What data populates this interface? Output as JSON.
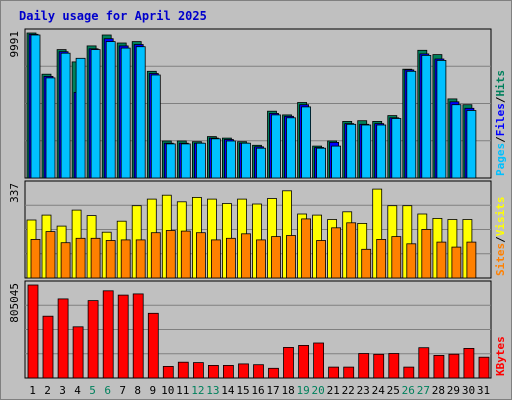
{
  "chart_data": {
    "type": "bar",
    "title": "Daily usage for April 2025",
    "categories": [
      "1",
      "2",
      "3",
      "4",
      "5",
      "6",
      "7",
      "8",
      "9",
      "10",
      "11",
      "12",
      "13",
      "14",
      "15",
      "16",
      "17",
      "18",
      "19",
      "20",
      "21",
      "22",
      "23",
      "24",
      "25",
      "26",
      "27",
      "28",
      "29",
      "30",
      "31"
    ],
    "weekend_categories": [
      "5",
      "6",
      "12",
      "13",
      "19",
      "20",
      "26",
      "27"
    ],
    "colors": {
      "title": "#0000cc",
      "background": "#c0c0c0",
      "grid": "#808080",
      "hits": "#00805c",
      "files": "#0000ff",
      "pages": "#00c0ff",
      "visits": "#ffff00",
      "sites": "#ff8000",
      "kbytes": "#ff0000",
      "weekday_label": "#000000",
      "weekend_label": "#00805c"
    },
    "panels": [
      {
        "name": "hits-files-pages",
        "ymax_label": "9991",
        "ymax": 9991,
        "legend": [
          {
            "text": "Pages",
            "color": "#00c0ff"
          },
          {
            "text": "/",
            "color": "#000000"
          },
          {
            "text": "Files",
            "color": "#0000ff"
          },
          {
            "text": "/",
            "color": "#000000"
          },
          {
            "text": "Hits",
            "color": "#00805c"
          }
        ],
        "series": [
          {
            "name": "Hits",
            "values": [
              9991,
              7150,
              8850,
              8000,
              9100,
              9850,
              9300,
              9400,
              7350,
              2550,
              2550,
              2500,
              2850,
              2750,
              2500,
              2250,
              4600,
              4350,
              5200,
              2200,
              2550,
              3900,
              3950,
              3900,
              4300,
              7500,
              8800,
              8500,
              5450,
              5050,
              0
            ]
          },
          {
            "name": "Files",
            "values": [
              9900,
              7000,
              8700,
              5900,
              8900,
              9600,
              9100,
              9200,
              7200,
              2400,
              2400,
              2400,
              2750,
              2650,
              2400,
              2150,
              4450,
              4250,
              5050,
              2100,
              2450,
              3750,
              3700,
              3750,
              4150,
              7450,
              8550,
              8200,
              5250,
              4800,
              0
            ]
          },
          {
            "name": "Pages",
            "values": [
              9850,
              6900,
              8600,
              8250,
              8850,
              9400,
              8950,
              9050,
              7100,
              2350,
              2350,
              2400,
              2700,
              2550,
              2400,
              2050,
              4350,
              4150,
              4900,
              2050,
              2200,
              3700,
              3650,
              3650,
              4100,
              7350,
              8450,
              8100,
              5050,
              4650,
              0
            ]
          }
        ]
      },
      {
        "name": "visits-sites",
        "ymax_label": "337",
        "ymax": 337,
        "legend": [
          {
            "text": "Sites",
            "color": "#ff8000"
          },
          {
            "text": "/",
            "color": "#000000"
          },
          {
            "text": "Visits",
            "color": "#ffff00"
          }
        ],
        "series": [
          {
            "name": "Visits",
            "values": [
              210,
              228,
              188,
              246,
              226,
              166,
              206,
              262,
              286,
              300,
              276,
              292,
              286,
              270,
              286,
              268,
              288,
              316,
              232,
              228,
              212,
              240,
              198,
              322,
              262,
              262,
              232,
              216,
              212,
              212,
              0
            ]
          },
          {
            "name": "Sites",
            "values": [
              140,
              168,
              128,
              144,
              144,
              136,
              138,
              138,
              164,
              172,
              170,
              164,
              138,
              144,
              160,
              138,
              150,
              154,
              214,
              136,
              182,
              200,
              104,
              140,
              150,
              124,
              176,
              130,
              112,
              130,
              0
            ]
          }
        ]
      },
      {
        "name": "kbytes",
        "ymax_label": "805045",
        "ymax": 805045,
        "legend": [
          {
            "text": "KBytes",
            "color": "#ff0000"
          }
        ],
        "series": [
          {
            "name": "KBytes",
            "values": [
              805045,
              535000,
              685000,
              443000,
              670000,
              755000,
              718000,
              728000,
              560000,
              100000,
              137000,
              133000,
              109000,
              109000,
              122000,
              115000,
              84000,
              265000,
              282000,
              303000,
              94000,
              94000,
              212000,
              205000,
              212000,
              94000,
              262000,
              196000,
              206000,
              256000,
              180000
            ]
          }
        ]
      }
    ]
  }
}
